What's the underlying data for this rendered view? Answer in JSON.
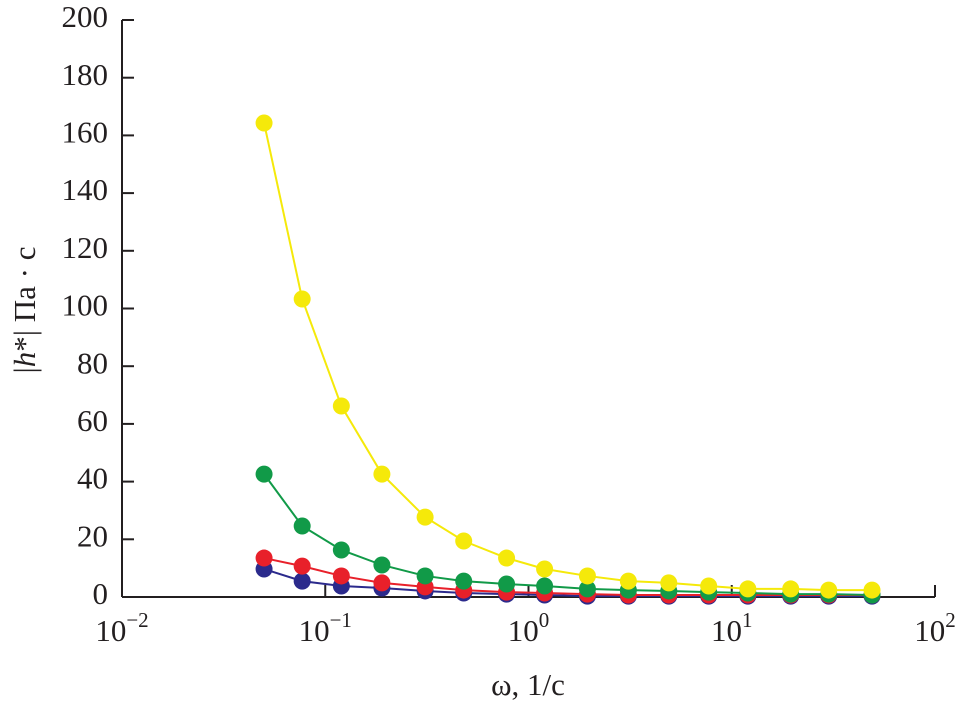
{
  "chart_data": {
    "type": "line",
    "y_label": "|h*| Па · с",
    "x_label": "ω, 1/с",
    "x": [
      0.05,
      0.077,
      0.12,
      0.19,
      0.31,
      0.48,
      0.78,
      1.2,
      1.95,
      3.1,
      4.9,
      7.7,
      12,
      19.5,
      30,
      49
    ],
    "series": [
      {
        "color": "#f5e90a",
        "values": [
          164.3,
          103.3,
          66.2,
          42.6,
          27.7,
          19.4,
          13.5,
          9.7,
          7.3,
          5.5,
          4.9,
          3.8,
          2.8,
          2.8,
          2.4,
          2.4
        ]
      },
      {
        "color": "#119a48",
        "values": [
          42.6,
          24.6,
          16.3,
          11.1,
          7.3,
          5.5,
          4.5,
          3.8,
          2.8,
          2.4,
          2.1,
          1.7,
          1.4,
          1.0,
          1.0,
          0.7
        ]
      },
      {
        "color": "#e8202a",
        "values": [
          13.5,
          10.7,
          7.3,
          4.9,
          3.5,
          2.4,
          1.7,
          1.4,
          1.0,
          0.7,
          0.7,
          0.7,
          0.7,
          0.7,
          0.7,
          0.7
        ]
      },
      {
        "color": "#2b2a8c",
        "values": [
          9.7,
          5.5,
          3.8,
          3.1,
          2.1,
          1.4,
          1.0,
          0.7,
          0.3,
          0.3,
          0.3,
          0.3,
          0.3,
          0.3,
          0.3,
          0.3
        ]
      }
    ],
    "xscale": "log",
    "xlim": [
      0.01,
      100
    ],
    "xticks": [
      {
        "value": 0.01,
        "label": "10−2"
      },
      {
        "value": 0.1,
        "label": "10−1"
      },
      {
        "value": 1,
        "label": "100"
      },
      {
        "value": 10,
        "label": "101"
      },
      {
        "value": 100,
        "label": "102"
      }
    ],
    "ylim": [
      0,
      200
    ],
    "yticks": [
      0,
      20,
      40,
      60,
      80,
      100,
      120,
      140,
      160,
      180,
      200
    ]
  }
}
